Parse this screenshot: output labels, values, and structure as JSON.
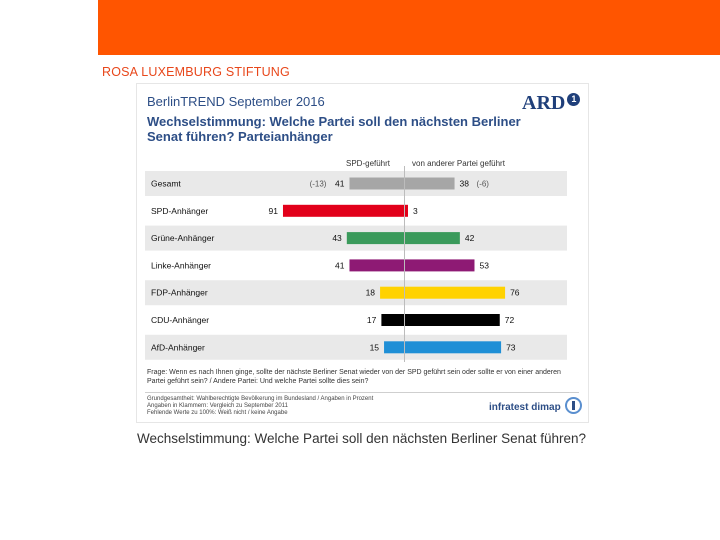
{
  "slide": {
    "brand": "ROSA LUXEMBURG STIFTUNG",
    "caption": "Wechselstimmung: Welche Partei soll den nächsten Berliner Senat führen?",
    "accent_color": "#ff5500"
  },
  "chart_header": {
    "title": "BerlinTREND September 2016",
    "question": "Wechselstimmung: Welche Partei soll den nächsten Berliner Senat führen? Parteianhänger",
    "logo_text": "ARD",
    "logo_badge": "1"
  },
  "chart_data": {
    "type": "bar",
    "orientation": "horizontal-diverging",
    "title": "Wechselstimmung: Welche Partei soll den nächsten Berliner Senat führen? Parteianhänger",
    "categories": [
      "Gesamt",
      "SPD-Anhänger",
      "Grüne-Anhänger",
      "Linke-Anhänger",
      "FDP-Anhänger",
      "CDU-Anhänger",
      "AfD-Anhänger"
    ],
    "series": [
      {
        "name": "SPD-geführt",
        "direction": "left",
        "values": [
          41,
          91,
          43,
          41,
          18,
          17,
          15
        ]
      },
      {
        "name": "von anderer Partei geführt",
        "direction": "right",
        "values": [
          38,
          3,
          42,
          53,
          76,
          72,
          73
        ]
      }
    ],
    "previous_values": {
      "category": "Gesamt",
      "left": "(-13)",
      "right": "(-6)"
    },
    "colors": [
      "#a6a6a6",
      "#e2001a",
      "#3a9a5b",
      "#8e1a74",
      "#ffd200",
      "#000000",
      "#1f8fd6"
    ],
    "xlim": [
      -100,
      100
    ]
  },
  "footnote": {
    "question": "Frage: Wenn es nach Ihnen ginge, sollte der nächste Berliner Senat wieder von der SPD geführt sein oder sollte er von einer anderen Partei geführt sein? / Andere Partei: Und welche Partei sollte dies sein?",
    "meta": [
      "Grundgesamtheit: Wahlberechtigte Bevölkerung im Bundesland / Angaben in Prozent",
      "Angaben in Klammern: Vergleich zu September 2011",
      "Fehlende Werte zu 100%: Weiß nicht / keine Angabe"
    ],
    "source": "infratest dimap"
  }
}
